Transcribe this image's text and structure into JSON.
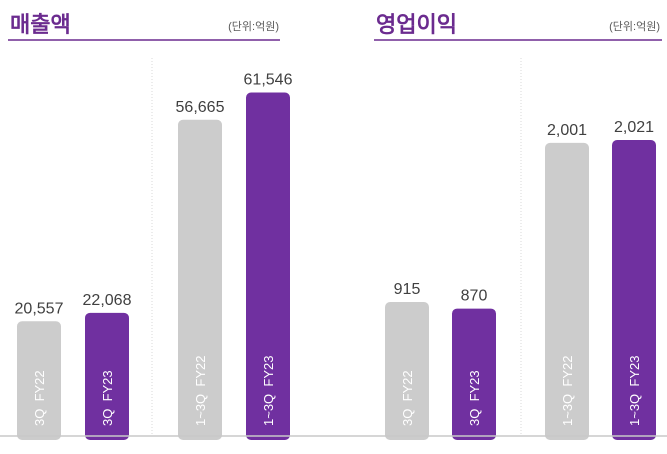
{
  "chart_data": [
    {
      "type": "bar",
      "title": "매출액",
      "unit": "(단위:억원)",
      "groups": [
        {
          "categories": [
            "3Q  FY22",
            "3Q  FY23"
          ],
          "values": [
            20557,
            22068
          ],
          "value_labels": [
            "20,557",
            "22,068"
          ]
        },
        {
          "categories": [
            "1~3Q  FY22",
            "1~3Q  FY23"
          ],
          "values": [
            56665,
            61546
          ],
          "value_labels": [
            "56,665",
            "61,546"
          ]
        }
      ]
    },
    {
      "type": "bar",
      "title": "영업이익",
      "unit": "(단위:억원)",
      "groups": [
        {
          "categories": [
            "3Q  FY22",
            "3Q  FY23"
          ],
          "values": [
            915,
            870
          ],
          "value_labels": [
            "915",
            "870"
          ]
        },
        {
          "categories": [
            "1~3Q  FY22",
            "1~3Q  FY23"
          ],
          "values": [
            2001,
            2021
          ],
          "value_labels": [
            "2,001",
            "2,021"
          ]
        }
      ]
    }
  ],
  "colors": {
    "prior_year": "#cccccc",
    "current_year": "#7030a0",
    "title": "#6b2b8f",
    "title_rule": "#6b2b8f",
    "baseline": "#c8c8c8",
    "value_text": "#404040",
    "unit_text": "#595959"
  }
}
